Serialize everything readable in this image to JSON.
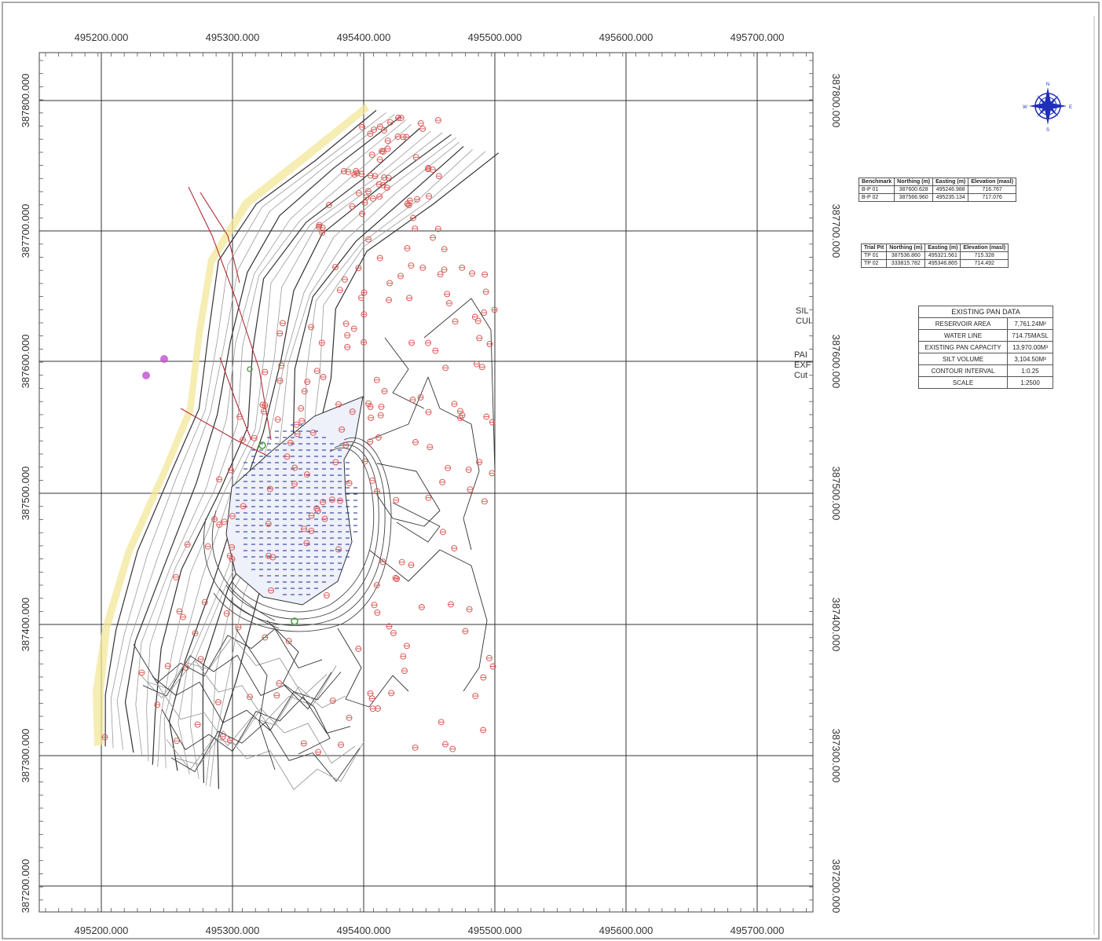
{
  "map": {
    "x_axis_labels": [
      "495200.000",
      "495300.000",
      "495400.000",
      "495500.000",
      "495600.000",
      "495700.000"
    ],
    "y_axis_labels": [
      "387800.000",
      "387700.000",
      "387600.000",
      "387500.000",
      "387400.000",
      "387300.000",
      "387200.000"
    ],
    "colors": {
      "contour": "#333333",
      "contour_light": "#9a9a9a",
      "spot_height": "#d9534f",
      "water": "#2b3b9e",
      "bank": "#f3e79a",
      "grid": "#333333",
      "north_arrow": "#1f2fb8"
    }
  },
  "north_arrow": {
    "n": "N",
    "s": "S",
    "e": "E",
    "w": "W"
  },
  "side_notes": [
    "SIL",
    "CUI",
    "PAI",
    "EXF",
    "Cut"
  ],
  "benchmark_table": {
    "headers": [
      "Benchmark",
      "Northing (m)",
      "Easting (m)",
      "Elevation (masl)"
    ],
    "rows": [
      [
        "B-P 01",
        "387600.628",
        "495246.988",
        "716.767"
      ],
      [
        "B-P 02",
        "387566.960",
        "495235.134",
        "717.076"
      ]
    ]
  },
  "trial_pit_table": {
    "headers": [
      "Trial Pit",
      "Northing (m)",
      "Easting (m)",
      "Elevation (masl)"
    ],
    "rows": [
      [
        "TP 01",
        "387536.860",
        "495321.561",
        "715.328"
      ],
      [
        "TP 02",
        "333815.782",
        "495346.865",
        "714.492"
      ]
    ]
  },
  "pan_data": {
    "title": "EXISTING PAN DATA",
    "rows": [
      [
        "RESERVOIR AREA",
        "7,761.24M²"
      ],
      [
        "WATER LINE",
        "714.75MASL"
      ],
      [
        "EXISTING PAN CAPACITY",
        "13,970.00M³"
      ],
      [
        "SILT VOLUME",
        "3,104.50M³"
      ],
      [
        "CONTOUR INTERVAL",
        "1:0.25"
      ],
      [
        "SCALE",
        "1:2500"
      ]
    ]
  }
}
